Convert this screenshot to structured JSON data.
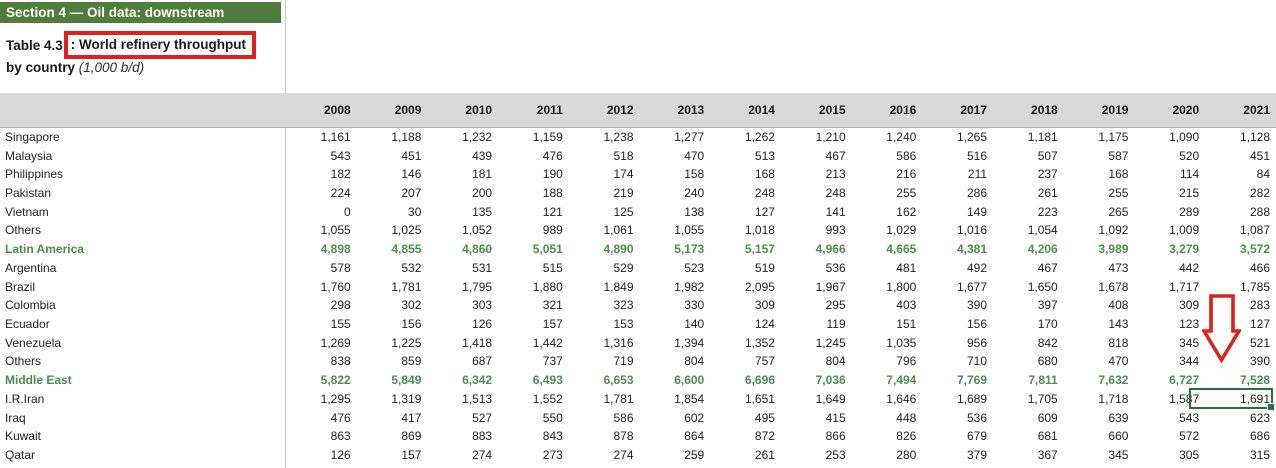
{
  "colors": {
    "section_header_bg": "#4f7d3b",
    "header_band_bg": "#d9d9d9",
    "group_row_text": "#4e8b52",
    "annotation_red": "#df2020",
    "cell_selection_green": "#217346"
  },
  "section_header": "Section 4 — Oil data: downstream",
  "title": {
    "prefix": "Table 4.3",
    "boxed": ": World refinery throughput",
    "subtitle_bold": "by country",
    "subtitle_italic": "(1,000 b/d)"
  },
  "table": {
    "years": [
      "2008",
      "2009",
      "2010",
      "2011",
      "2012",
      "2013",
      "2014",
      "2015",
      "2016",
      "2017",
      "2018",
      "2019",
      "2020",
      "2021"
    ],
    "rows": [
      {
        "label": "Singapore",
        "group": false,
        "values": [
          "1,161",
          "1,188",
          "1,232",
          "1,159",
          "1,238",
          "1,277",
          "1,262",
          "1,210",
          "1,240",
          "1,265",
          "1,181",
          "1,175",
          "1,090",
          "1,128"
        ]
      },
      {
        "label": "Malaysia",
        "group": false,
        "values": [
          "543",
          "451",
          "439",
          "476",
          "518",
          "470",
          "513",
          "467",
          "586",
          "516",
          "507",
          "587",
          "520",
          "451"
        ]
      },
      {
        "label": "Philippines",
        "group": false,
        "values": [
          "182",
          "146",
          "181",
          "190",
          "174",
          "158",
          "168",
          "213",
          "216",
          "211",
          "237",
          "168",
          "114",
          "84"
        ]
      },
      {
        "label": "Pakistan",
        "group": false,
        "values": [
          "224",
          "207",
          "200",
          "188",
          "219",
          "240",
          "248",
          "248",
          "255",
          "286",
          "261",
          "255",
          "215",
          "282"
        ]
      },
      {
        "label": "Vietnam",
        "group": false,
        "values": [
          "0",
          "30",
          "135",
          "121",
          "125",
          "138",
          "127",
          "141",
          "162",
          "149",
          "223",
          "265",
          "289",
          "288"
        ]
      },
      {
        "label": "Others",
        "group": false,
        "values": [
          "1,055",
          "1,025",
          "1,052",
          "989",
          "1,061",
          "1,055",
          "1,018",
          "993",
          "1,029",
          "1,016",
          "1,054",
          "1,092",
          "1,009",
          "1,087"
        ]
      },
      {
        "label": "Latin America",
        "group": true,
        "values": [
          "4,898",
          "4,855",
          "4,860",
          "5,051",
          "4,890",
          "5,173",
          "5,157",
          "4,966",
          "4,665",
          "4,381",
          "4,206",
          "3,989",
          "3,279",
          "3,572"
        ]
      },
      {
        "label": "Argentina",
        "group": false,
        "values": [
          "578",
          "532",
          "531",
          "515",
          "529",
          "523",
          "519",
          "536",
          "481",
          "492",
          "467",
          "473",
          "442",
          "466"
        ]
      },
      {
        "label": "Brazil",
        "group": false,
        "values": [
          "1,760",
          "1,781",
          "1,795",
          "1,880",
          "1,849",
          "1,982",
          "2,095",
          "1,967",
          "1,800",
          "1,677",
          "1,650",
          "1,678",
          "1,717",
          "1,785"
        ]
      },
      {
        "label": "Colombia",
        "group": false,
        "values": [
          "298",
          "302",
          "303",
          "321",
          "323",
          "330",
          "309",
          "295",
          "403",
          "390",
          "397",
          "408",
          "309",
          "283"
        ]
      },
      {
        "label": "Ecuador",
        "group": false,
        "values": [
          "155",
          "156",
          "126",
          "157",
          "153",
          "140",
          "124",
          "119",
          "151",
          "156",
          "170",
          "143",
          "123",
          "127"
        ]
      },
      {
        "label": "Venezuela",
        "group": false,
        "values": [
          "1,269",
          "1,225",
          "1,418",
          "1,442",
          "1,316",
          "1,394",
          "1,352",
          "1,245",
          "1,035",
          "956",
          "842",
          "818",
          "345",
          "521"
        ]
      },
      {
        "label": "Others",
        "group": false,
        "values": [
          "838",
          "859",
          "687",
          "737",
          "719",
          "804",
          "757",
          "804",
          "796",
          "710",
          "680",
          "470",
          "344",
          "390"
        ]
      },
      {
        "label": "Middle East",
        "group": true,
        "values": [
          "5,822",
          "5,849",
          "6,342",
          "6,493",
          "6,653",
          "6,600",
          "6,696",
          "7,036",
          "7,494",
          "7,769",
          "7,811",
          "7,632",
          "6,727",
          "7,528"
        ]
      },
      {
        "label": "I.R.Iran",
        "group": false,
        "values": [
          "1,295",
          "1,319",
          "1,513",
          "1,552",
          "1,781",
          "1,854",
          "1,651",
          "1,649",
          "1,646",
          "1,689",
          "1,705",
          "1,718",
          "1,587",
          "1,691"
        ]
      },
      {
        "label": "Iraq",
        "group": false,
        "values": [
          "476",
          "417",
          "527",
          "550",
          "586",
          "602",
          "495",
          "415",
          "448",
          "536",
          "609",
          "639",
          "543",
          "623"
        ]
      },
      {
        "label": "Kuwait",
        "group": false,
        "values": [
          "863",
          "869",
          "883",
          "843",
          "878",
          "864",
          "872",
          "866",
          "826",
          "679",
          "681",
          "660",
          "572",
          "686"
        ]
      },
      {
        "label": "Qatar",
        "group": false,
        "values": [
          "126",
          "157",
          "274",
          "273",
          "274",
          "259",
          "261",
          "253",
          "280",
          "379",
          "367",
          "345",
          "305",
          "315"
        ]
      }
    ],
    "selected_cell": {
      "row": "I.R.Iran",
      "year": "2021",
      "value": "1,691"
    }
  }
}
